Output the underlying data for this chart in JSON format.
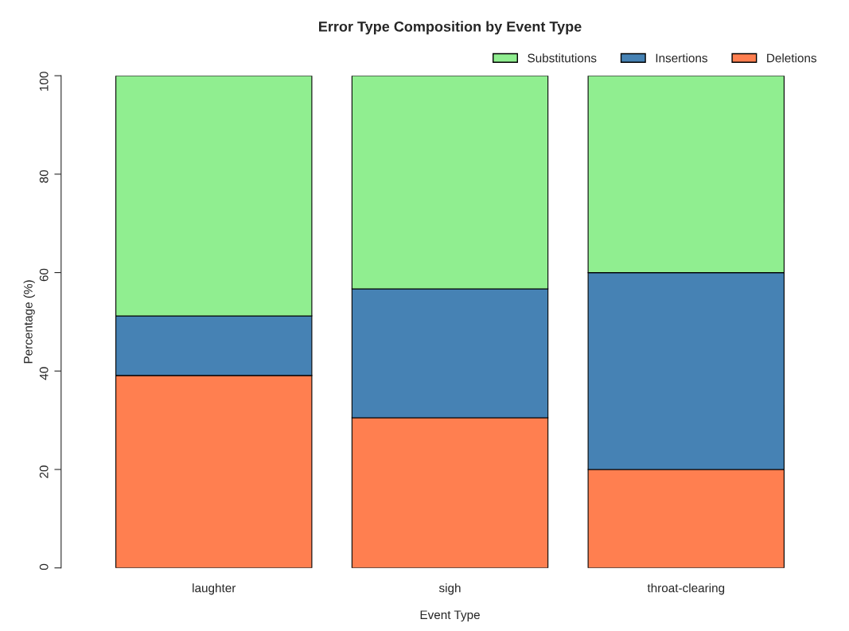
{
  "chart_data": {
    "type": "bar",
    "title": "Error Type Composition by Event Type",
    "xlabel": "Event Type",
    "ylabel": "Percentage (%)",
    "categories": [
      "laughter",
      "sigh",
      "throat-clearing"
    ],
    "series": [
      {
        "name": "Deletions",
        "color": "#ff7f50",
        "values": [
          39.1,
          30.5,
          20
        ]
      },
      {
        "name": "Insertions",
        "color": "#4682b4",
        "values": [
          12.1,
          26.2,
          40
        ]
      },
      {
        "name": "Substitutions",
        "color": "#90ee90",
        "values": [
          48.8,
          43.3,
          40
        ]
      }
    ],
    "stacked": true,
    "ylim": [
      0,
      100
    ],
    "yticks": [
      0,
      20,
      40,
      60,
      80,
      100
    ],
    "grid": false,
    "legend": "top right"
  }
}
